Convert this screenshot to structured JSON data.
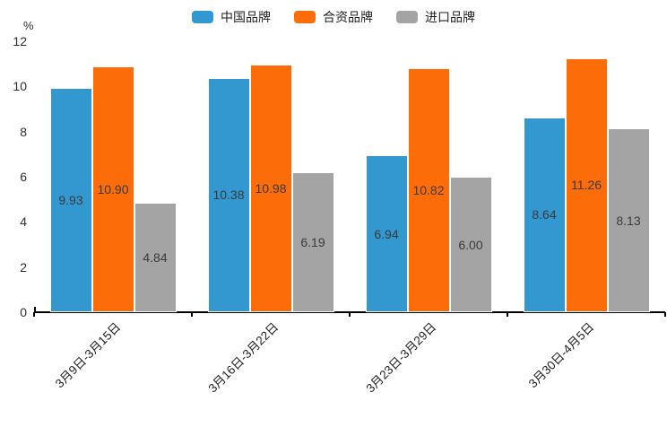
{
  "chart_data": {
    "type": "bar",
    "title": "",
    "categories": [
      "3月9日-3月15日",
      "3月16日-3月22日",
      "3月23日-3月29日",
      "3月30日-4月5日"
    ],
    "series": [
      {
        "name": "中国品牌",
        "color": "#3398CF",
        "values": [
          9.93,
          10.38,
          6.94,
          8.64
        ]
      },
      {
        "name": "合资品牌",
        "color": "#FC6D09",
        "values": [
          10.9,
          10.98,
          10.82,
          11.26
        ]
      },
      {
        "name": "进口品牌",
        "color": "#A4A4A4",
        "values": [
          4.84,
          6.19,
          6.0,
          8.13
        ]
      }
    ],
    "xlabel": "",
    "ylabel": "%",
    "ylim": [
      0,
      12
    ],
    "yticks": [
      0,
      2,
      4,
      6,
      8,
      10,
      12
    ],
    "grid": false,
    "legend_position": "top",
    "value_labels": true,
    "value_label_decimals": 2,
    "axis_color": "#000000",
    "background_color": "#ffffff"
  }
}
